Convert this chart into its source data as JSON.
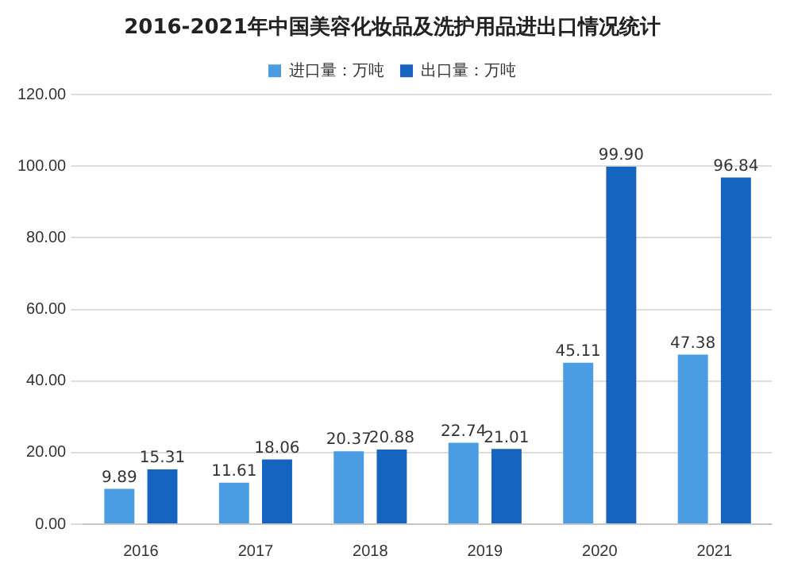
{
  "chart_data": {
    "type": "bar",
    "title": "2016-2021年中国美容化妆品及洗护用品进出口情况统计",
    "categories": [
      "2016",
      "2017",
      "2018",
      "2019",
      "2020",
      "2021"
    ],
    "series": [
      {
        "name": "进口量：万吨",
        "color": "#4a9de3",
        "values": [
          9.89,
          11.61,
          20.37,
          22.74,
          45.11,
          47.38
        ],
        "value_labels": [
          "9.89",
          "11.61",
          "20.37",
          "22.74",
          "45.11",
          "47.38"
        ]
      },
      {
        "name": "出口量：万吨",
        "color": "#1565c0",
        "values": [
          15.31,
          18.06,
          20.88,
          21.01,
          99.9,
          96.84
        ],
        "value_labels": [
          "15.31",
          "18.06",
          "20.88",
          "21.01",
          "99.90",
          "96.84"
        ]
      }
    ],
    "ylim": [
      0,
      120
    ],
    "yticks": [
      {
        "value": 0,
        "label": "0.00"
      },
      {
        "value": 20,
        "label": "20.00"
      },
      {
        "value": 40,
        "label": "40.00"
      },
      {
        "value": 60,
        "label": "60.00"
      },
      {
        "value": 80,
        "label": "80.00"
      },
      {
        "value": 100,
        "label": "100.00"
      },
      {
        "value": 120,
        "label": "120.00"
      }
    ],
    "grid": "y",
    "legend": "top"
  }
}
